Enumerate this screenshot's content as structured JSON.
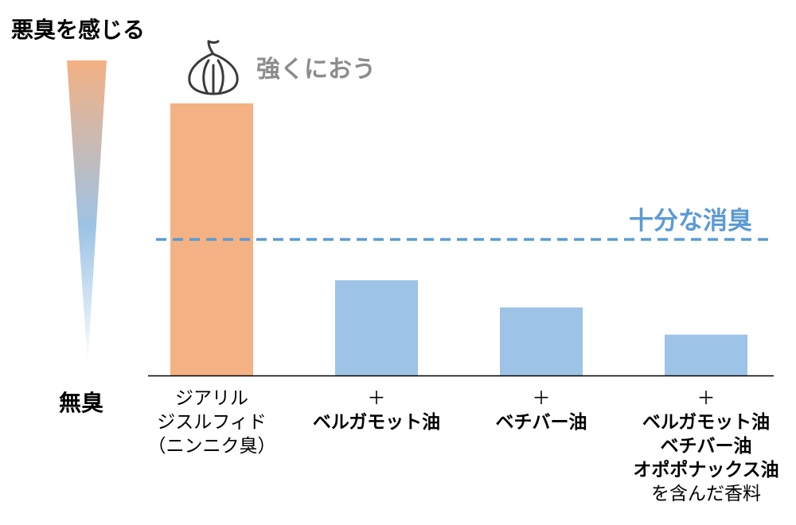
{
  "chart_data": {
    "type": "bar",
    "axis_top_label": "悪臭を感じる",
    "axis_bottom_label": "無臭",
    "peak_label": "強くにおう",
    "threshold_label": "十分な消臭",
    "threshold_value": 50,
    "ylim": [
      0,
      100
    ],
    "categories": [
      {
        "prefix": "",
        "lines": [
          "ジアリル",
          "ジスルフィド",
          "（ニンニク臭）"
        ],
        "bold": [
          false,
          false,
          false
        ]
      },
      {
        "prefix": "＋",
        "lines": [
          "ベルガモット油"
        ],
        "bold": [
          true
        ]
      },
      {
        "prefix": "＋",
        "lines": [
          "ベチバー油"
        ],
        "bold": [
          true
        ]
      },
      {
        "prefix": "＋",
        "lines": [
          "ベルガモット油",
          "ベチバー油",
          "オポポナックス油",
          "を含んだ香料"
        ],
        "bold": [
          true,
          true,
          true,
          false
        ]
      }
    ],
    "values": [
      100,
      35,
      25,
      15
    ],
    "colors": {
      "odor": "#f4b183",
      "treated": "#9dc3e6",
      "threshold": "#5b9bd5",
      "gradient_top": "#f4b183",
      "gradient_mid": "#9dc3e6"
    }
  }
}
